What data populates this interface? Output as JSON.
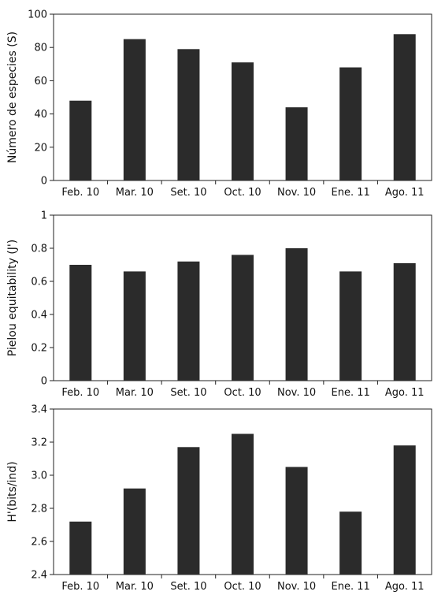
{
  "chart_data": [
    {
      "type": "bar",
      "categories": [
        "Feb. 10",
        "Mar. 10",
        "Set. 10",
        "Oct. 10",
        "Nov. 10",
        "Ene. 11",
        "Ago. 11"
      ],
      "values": [
        48,
        85,
        79,
        71,
        44,
        68,
        88
      ],
      "ylabel": "Número de especies (S)",
      "ylim": [
        0,
        100
      ],
      "yticks": [
        "0",
        "20",
        "40",
        "60",
        "80",
        "100"
      ],
      "grid": false
    },
    {
      "type": "bar",
      "categories": [
        "Feb. 10",
        "Mar. 10",
        "Set. 10",
        "Oct. 10",
        "Nov. 10",
        "Ene. 11",
        "Ago. 11"
      ],
      "values": [
        0.7,
        0.66,
        0.72,
        0.76,
        0.8,
        0.66,
        0.71
      ],
      "ylabel": "Pielou equitability (J')",
      "ylim": [
        0,
        1
      ],
      "yticks": [
        "0",
        "0.2",
        "0.4",
        "0.6",
        "0.8",
        "1"
      ],
      "grid": false
    },
    {
      "type": "bar",
      "categories": [
        "Feb. 10",
        "Mar. 10",
        "Set. 10",
        "Oct. 10",
        "Nov. 10",
        "Ene. 11",
        "Ago. 11"
      ],
      "values": [
        2.72,
        2.92,
        3.17,
        3.25,
        3.05,
        2.78,
        3.18
      ],
      "ylabel": "H'(bits/ind)",
      "ylim": [
        2.4,
        3.4
      ],
      "yticks": [
        "2.4",
        "2.6",
        "2.8",
        "3.0",
        "3.2",
        "3.4"
      ],
      "grid": false
    }
  ]
}
